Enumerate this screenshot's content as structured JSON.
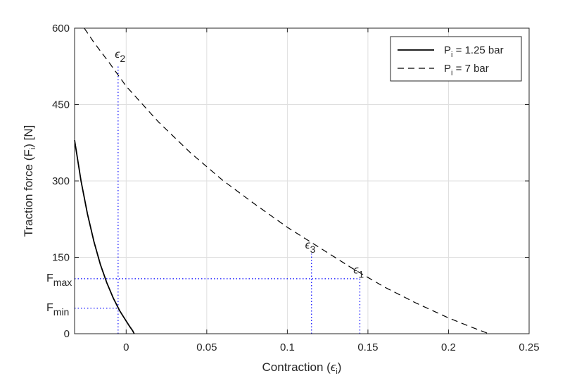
{
  "chart_data": {
    "type": "line",
    "xlabel": "Contraction",
    "xlabel_symbol": "ϵ",
    "xlabel_symbol_sub": "i",
    "ylabel": "Traction force",
    "ylabel_symbol": "F",
    "ylabel_symbol_sub": "i",
    "ylabel_unit": "[N]",
    "xlim": [
      -0.032,
      0.25
    ],
    "ylim": [
      0,
      600
    ],
    "xticks": [
      0,
      0.05,
      0.1,
      0.15,
      0.2,
      0.25
    ],
    "xtick_labels": [
      "0",
      "0.05",
      "0.1",
      "0.15",
      "0.2",
      "0.25"
    ],
    "yticks": [
      0,
      150,
      300,
      450,
      600
    ],
    "ytick_labels": [
      "0",
      "150",
      "300",
      "450",
      "600"
    ],
    "grid": true,
    "legend": "top-right",
    "series": [
      {
        "name": "P_i = 1.25 bar",
        "legend_main": "P",
        "legend_sub": "i",
        "legend_rest": " = 1.25 bar",
        "style": "solid",
        "color": "#000000",
        "x": [
          -0.032,
          -0.028,
          -0.024,
          -0.02,
          -0.016,
          -0.012,
          -0.008,
          -0.004,
          0.0,
          0.002,
          0.004,
          0.005
        ],
        "y": [
          380,
          300,
          235,
          181,
          136,
          100,
          70,
          45,
          25,
          15,
          6,
          0
        ]
      },
      {
        "name": "P_i = 7 bar",
        "legend_main": "P",
        "legend_sub": "i",
        "legend_rest": " = 7 bar",
        "style": "dashed",
        "color": "#000000",
        "x": [
          -0.026,
          -0.02,
          -0.01,
          0.0,
          0.02,
          0.04,
          0.06,
          0.08,
          0.1,
          0.12,
          0.14,
          0.16,
          0.18,
          0.2,
          0.215,
          0.225
        ],
        "y": [
          600,
          572,
          530,
          486,
          416,
          355,
          301,
          254,
          209,
          169,
          129,
          92,
          60,
          31,
          12,
          0
        ]
      }
    ],
    "reference_lines": {
      "color": "#0000ff",
      "horizontal": [
        {
          "y": 108,
          "x0": -0.032,
          "x1": 0.145
        },
        {
          "y": 50,
          "x0": -0.032,
          "x1": -0.005
        }
      ],
      "vertical": [
        {
          "x": -0.005,
          "y0": 0,
          "y1": 525
        },
        {
          "x": 0.115,
          "y0": 0,
          "y1": 157
        },
        {
          "x": 0.145,
          "y0": 0,
          "y1": 108
        }
      ]
    },
    "annotations": [
      {
        "main": "ϵ",
        "sub": "2",
        "x": -0.007,
        "y": 542
      },
      {
        "main": "ϵ",
        "sub": "3",
        "x": 0.111,
        "y": 167
      },
      {
        "main": "ϵ",
        "sub": "1",
        "x": 0.141,
        "y": 118
      },
      {
        "main": "F",
        "sub": "max",
        "at_y": 108
      },
      {
        "main": "F",
        "sub": "min",
        "at_y": 50
      }
    ]
  }
}
